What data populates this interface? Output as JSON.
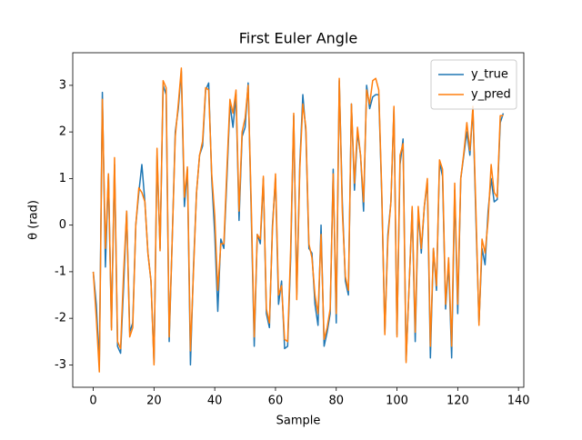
{
  "chart_data": {
    "type": "line",
    "title": "First Euler Angle",
    "x_label": "Sample",
    "y_label": "θ (rad)",
    "x": [
      0,
      1,
      2,
      3,
      4,
      5,
      6,
      7,
      8,
      9,
      10,
      11,
      12,
      13,
      14,
      15,
      16,
      17,
      18,
      19,
      20,
      21,
      22,
      23,
      24,
      25,
      26,
      27,
      28,
      29,
      30,
      31,
      32,
      33,
      34,
      35,
      36,
      37,
      38,
      39,
      40,
      41,
      42,
      43,
      44,
      45,
      46,
      47,
      48,
      49,
      50,
      51,
      52,
      53,
      54,
      55,
      56,
      57,
      58,
      59,
      60,
      61,
      62,
      63,
      64,
      65,
      66,
      67,
      68,
      69,
      70,
      71,
      72,
      73,
      74,
      75,
      76,
      77,
      78,
      79,
      80,
      81,
      82,
      83,
      84,
      85,
      86,
      87,
      88,
      89,
      90,
      91,
      92,
      93,
      94,
      95,
      96,
      97,
      98,
      99,
      100,
      101,
      102,
      103,
      104,
      105,
      106,
      107,
      108,
      109,
      110,
      111,
      112,
      113,
      114,
      115,
      116,
      117,
      118,
      119,
      120,
      121,
      122,
      123,
      124,
      125,
      126,
      127,
      128,
      129,
      130,
      131,
      132,
      133,
      134,
      135
    ],
    "series": [
      {
        "name": "y_true",
        "color": "#1f77b4",
        "values": [
          -1.0,
          -1.7,
          -3.0,
          2.85,
          -0.9,
          1.1,
          -2.2,
          1.3,
          -2.6,
          -2.75,
          -1.3,
          0.3,
          -2.3,
          -2.1,
          0.0,
          0.7,
          1.3,
          0.5,
          -0.6,
          -1.2,
          -2.95,
          1.5,
          -0.5,
          3.0,
          2.8,
          -2.5,
          -0.3,
          2.0,
          2.5,
          3.3,
          0.4,
          1.2,
          -3.0,
          -0.9,
          0.7,
          1.5,
          1.7,
          2.9,
          3.05,
          1.0,
          -0.2,
          -1.85,
          -0.3,
          -0.5,
          1.0,
          2.6,
          2.1,
          2.8,
          0.1,
          1.9,
          2.1,
          3.05,
          0.3,
          -2.6,
          -0.2,
          -0.4,
          1.0,
          -1.9,
          -2.2,
          0.0,
          1.0,
          -1.7,
          -1.2,
          -2.65,
          -2.6,
          -0.7,
          2.35,
          -1.5,
          1.3,
          2.8,
          2.0,
          -0.5,
          -0.6,
          -1.7,
          -2.15,
          0.0,
          -2.6,
          -2.3,
          -1.9,
          1.2,
          -2.1,
          3.1,
          0.5,
          -1.2,
          -1.5,
          2.6,
          0.75,
          2.0,
          1.5,
          0.3,
          3.0,
          2.5,
          2.75,
          2.8,
          2.8,
          0.6,
          -2.3,
          -0.2,
          0.5,
          2.5,
          -2.35,
          1.3,
          1.85,
          -2.9,
          -1.3,
          0.35,
          -2.5,
          0.3,
          -0.6,
          0.4,
          0.9,
          -2.85,
          -0.5,
          -1.4,
          1.35,
          1.05,
          -1.8,
          -0.8,
          -2.85,
          0.75,
          -1.9,
          1.0,
          1.5,
          2.0,
          1.5,
          2.5,
          0.1,
          -2.1,
          -0.5,
          -0.85,
          0.3,
          1.0,
          0.5,
          0.55,
          2.2,
          2.4
        ]
      },
      {
        "name": "y_pred",
        "color": "#ff7f0e",
        "values": [
          -1.0,
          -2.0,
          -3.15,
          2.7,
          -0.5,
          1.1,
          -2.25,
          1.45,
          -2.5,
          -2.65,
          -1.0,
          0.3,
          -2.4,
          -2.2,
          0.0,
          0.8,
          0.7,
          0.5,
          -0.6,
          -1.2,
          -3.0,
          1.65,
          -0.55,
          3.1,
          2.95,
          -2.4,
          -0.3,
          1.9,
          2.6,
          3.37,
          0.6,
          1.25,
          -2.7,
          -1.0,
          0.7,
          1.5,
          1.8,
          2.95,
          2.9,
          1.1,
          0.2,
          -1.4,
          -0.4,
          -0.4,
          1.2,
          2.7,
          2.4,
          2.9,
          0.3,
          2.0,
          2.3,
          3.0,
          0.5,
          -2.4,
          -0.2,
          -0.3,
          1.05,
          -1.8,
          -2.1,
          -0.1,
          1.1,
          -1.5,
          -1.3,
          -2.45,
          -2.5,
          -0.5,
          2.4,
          -1.6,
          1.2,
          2.6,
          2.1,
          -0.4,
          -0.7,
          -1.5,
          -1.9,
          -0.2,
          -2.45,
          -2.2,
          -1.8,
          1.1,
          -1.9,
          3.15,
          0.3,
          -1.1,
          -1.4,
          2.6,
          0.9,
          2.1,
          1.5,
          0.5,
          2.9,
          2.6,
          3.1,
          3.15,
          2.9,
          0.7,
          -2.35,
          -0.3,
          0.5,
          2.55,
          -2.4,
          1.5,
          1.75,
          -2.95,
          -1.3,
          0.4,
          -2.3,
          0.4,
          -0.5,
          0.4,
          1.0,
          -2.6,
          -0.5,
          -1.3,
          1.4,
          1.2,
          -1.7,
          -0.7,
          -2.6,
          0.9,
          -1.7,
          1.0,
          1.55,
          2.2,
          1.6,
          2.55,
          0.3,
          -2.15,
          -0.3,
          -0.6,
          0.1,
          1.3,
          0.7,
          0.6,
          2.35,
          2.35
        ]
      }
    ],
    "xlim": [
      -6.75,
      141.75
    ],
    "ylim": [
      -3.48,
      3.7
    ],
    "xticks": [
      0,
      20,
      40,
      60,
      80,
      100,
      120,
      140
    ],
    "yticks": [
      -3,
      -2,
      -1,
      0,
      1,
      2,
      3
    ],
    "legend": "upper right"
  }
}
